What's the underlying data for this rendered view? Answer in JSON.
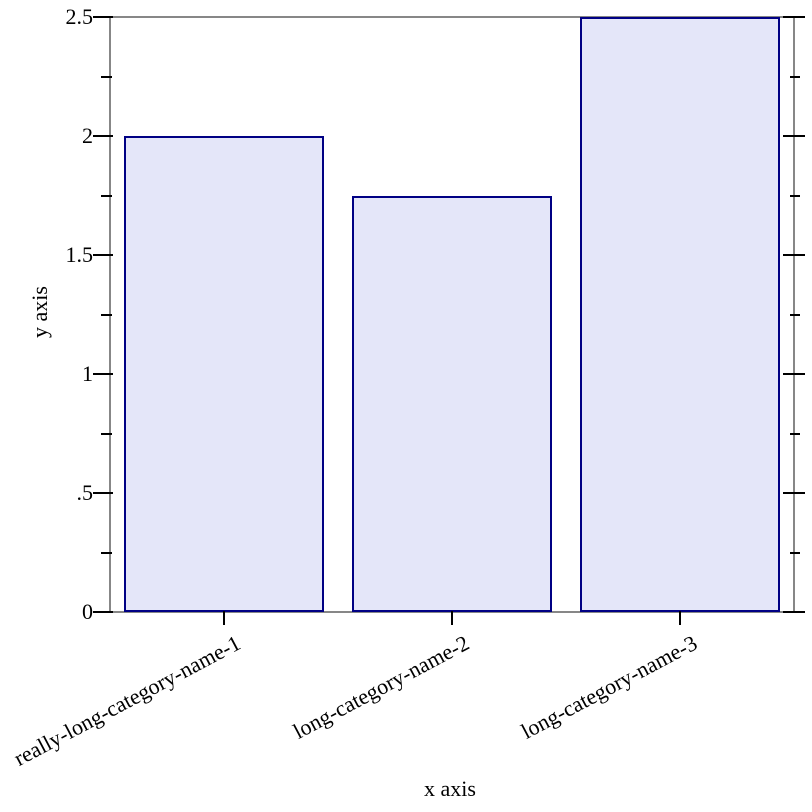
{
  "chart_data": {
    "type": "bar",
    "title": "",
    "xlabel": "x axis",
    "ylabel": "y axis",
    "categories": [
      "really-long-category-name-1",
      "long-category-name-2",
      "long-category-name-3"
    ],
    "values": [
      2,
      1.75,
      2.5
    ],
    "ylim": [
      0,
      2.5
    ],
    "y_major_ticks": [
      0,
      0.5,
      1,
      1.5,
      2,
      2.5
    ],
    "y_tick_labels": [
      "0",
      ".5",
      "1",
      "1.5",
      "2",
      "2.5"
    ],
    "y_minor_ticks": [
      0.25,
      0.75,
      1.25,
      1.75,
      2.25
    ],
    "x_tick_label_rotation_deg": -28,
    "grid": false,
    "legend": "none",
    "colors": {
      "bar_fill": "#e4e6f9",
      "bar_border": "#000084",
      "frame": "#878787",
      "tick": "#000000",
      "text": "#000000",
      "background": "#ffffff"
    }
  }
}
